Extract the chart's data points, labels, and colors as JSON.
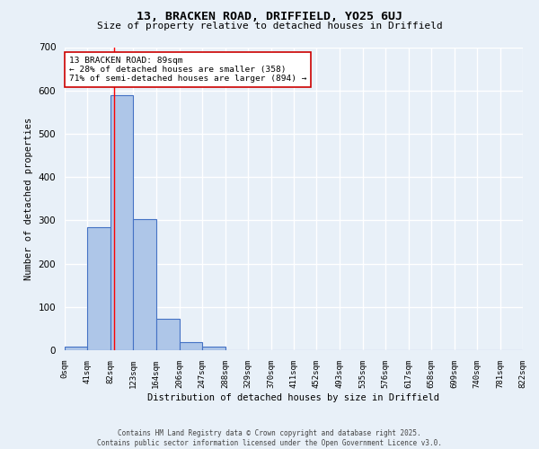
{
  "title_line1": "13, BRACKEN ROAD, DRIFFIELD, YO25 6UJ",
  "title_line2": "Size of property relative to detached houses in Driffield",
  "xlabel": "Distribution of detached houses by size in Driffield",
  "ylabel": "Number of detached properties",
  "bar_edges": [
    0,
    41,
    82,
    123,
    164,
    206,
    247,
    288,
    329,
    370,
    411,
    452,
    493,
    535,
    576,
    617,
    658,
    699,
    740,
    781,
    822
  ],
  "bar_heights": [
    8,
    285,
    590,
    302,
    72,
    18,
    8,
    0,
    0,
    0,
    0,
    0,
    0,
    0,
    0,
    0,
    0,
    0,
    0,
    0
  ],
  "bar_color": "#aec6e8",
  "bar_edge_color": "#4472c4",
  "tick_labels": [
    "0sqm",
    "41sqm",
    "82sqm",
    "123sqm",
    "164sqm",
    "206sqm",
    "247sqm",
    "288sqm",
    "329sqm",
    "370sqm",
    "411sqm",
    "452sqm",
    "493sqm",
    "535sqm",
    "576sqm",
    "617sqm",
    "658sqm",
    "699sqm",
    "740sqm",
    "781sqm",
    "822sqm"
  ],
  "ylim": [
    0,
    700
  ],
  "yticks": [
    0,
    100,
    200,
    300,
    400,
    500,
    600,
    700
  ],
  "red_line_x": 89,
  "annotation_text": "13 BRACKEN ROAD: 89sqm\n← 28% of detached houses are smaller (358)\n71% of semi-detached houses are larger (894) →",
  "annotation_box_color": "#ffffff",
  "annotation_box_edge": "#cc0000",
  "bg_color": "#e8f0f8",
  "grid_color": "#ffffff",
  "footer_line1": "Contains HM Land Registry data © Crown copyright and database right 2025.",
  "footer_line2": "Contains public sector information licensed under the Open Government Licence v3.0."
}
